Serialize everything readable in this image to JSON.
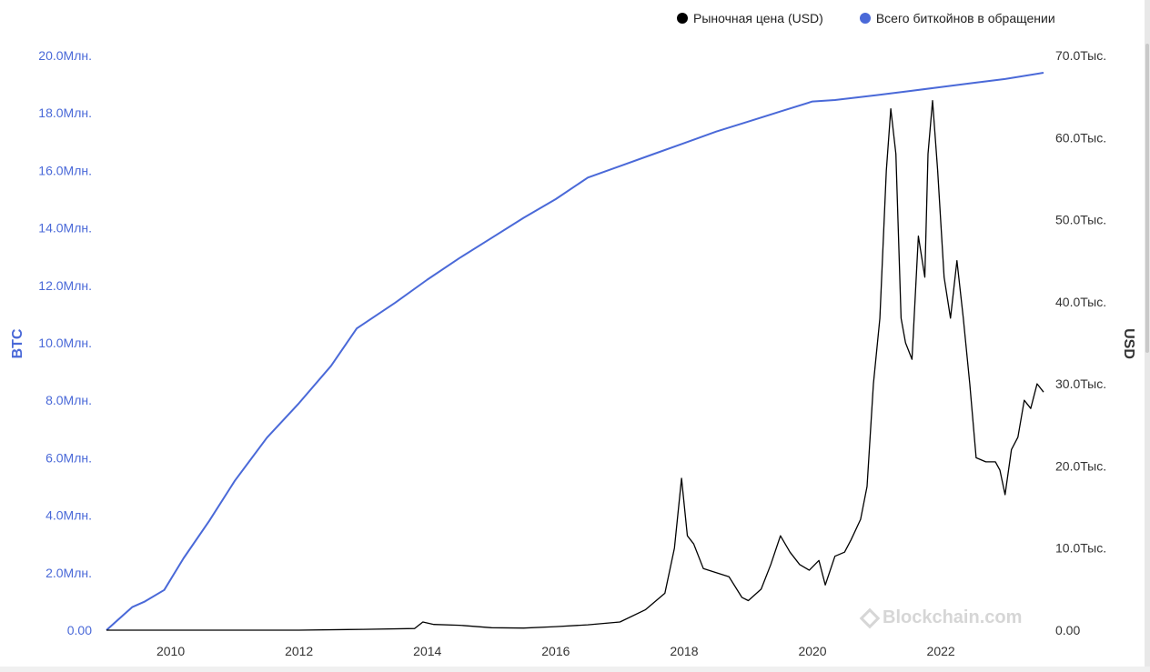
{
  "legend": {
    "price_label": "Рыночная цена (USD)",
    "supply_label": "Всего биткойнов в обращении"
  },
  "watermark": "Blockchain.com",
  "colors": {
    "price": "#000000",
    "supply": "#4a69d8",
    "left_axis_text": "#4a69d8",
    "right_axis_text": "#333333"
  },
  "chart_data": {
    "type": "line",
    "left_axis": {
      "label": "BTC",
      "range": [
        0,
        20000000
      ],
      "ticks": [
        "0.00",
        "2.0Млн.",
        "4.0Млн.",
        "6.0Млн.",
        "8.0Млн.",
        "10.0Млн.",
        "12.0Млн.",
        "14.0Млн.",
        "16.0Млн.",
        "18.0Млн.",
        "20.0Млн."
      ]
    },
    "right_axis": {
      "label": "USD",
      "range": [
        0,
        70000
      ],
      "ticks": [
        "0.00",
        "10.0Тыс.",
        "20.0Тыс.",
        "30.0Тыс.",
        "40.0Тыс.",
        "50.0Тыс.",
        "60.0Тыс.",
        "70.0Тыс."
      ]
    },
    "x_axis": {
      "range": [
        2009.0,
        2023.6
      ],
      "ticks": [
        "2010",
        "2012",
        "2014",
        "2016",
        "2018",
        "2020",
        "2022"
      ]
    },
    "series": [
      {
        "name": "Всего биткойнов в обращении",
        "axis": "left",
        "x": [
          2009.0,
          2009.4,
          2009.6,
          2009.9,
          2010.2,
          2010.6,
          2011.0,
          2011.5,
          2012.0,
          2012.5,
          2012.9,
          2013.5,
          2014.0,
          2014.5,
          2015.0,
          2015.5,
          2016.0,
          2016.5,
          2017.0,
          2017.5,
          2018.0,
          2018.5,
          2019.0,
          2019.5,
          2020.0,
          2020.35,
          2021.0,
          2021.5,
          2022.0,
          2022.5,
          2023.0,
          2023.6
        ],
        "values": [
          0,
          800000,
          1000000,
          1400000,
          2500000,
          3800000,
          5200000,
          6700000,
          7900000,
          9200000,
          10500000,
          11400000,
          12200000,
          12950000,
          13650000,
          14350000,
          15000000,
          15750000,
          16150000,
          16550000,
          16950000,
          17350000,
          17700000,
          18050000,
          18400000,
          18450000,
          18620000,
          18760000,
          18900000,
          19040000,
          19180000,
          19400000
        ]
      },
      {
        "name": "Рыночная цена (USD)",
        "axis": "right",
        "x": [
          2009.0,
          2010.0,
          2011.0,
          2012.0,
          2013.0,
          2013.8,
          2013.93,
          2014.1,
          2014.5,
          2015.0,
          2015.5,
          2016.0,
          2016.5,
          2017.0,
          2017.4,
          2017.7,
          2017.85,
          2017.96,
          2018.05,
          2018.15,
          2018.3,
          2018.5,
          2018.7,
          2018.9,
          2019.0,
          2019.2,
          2019.35,
          2019.5,
          2019.65,
          2019.8,
          2019.95,
          2020.1,
          2020.2,
          2020.35,
          2020.5,
          2020.6,
          2020.75,
          2020.85,
          2020.95,
          2021.05,
          2021.15,
          2021.22,
          2021.3,
          2021.38,
          2021.45,
          2021.55,
          2021.65,
          2021.75,
          2021.8,
          2021.87,
          2021.95,
          2022.05,
          2022.15,
          2022.25,
          2022.35,
          2022.45,
          2022.55,
          2022.7,
          2022.85,
          2022.92,
          2023.0,
          2023.1,
          2023.2,
          2023.3,
          2023.4,
          2023.5,
          2023.6
        ],
        "values": [
          0,
          0,
          0,
          5,
          100,
          200,
          1000,
          700,
          600,
          300,
          250,
          430,
          650,
          1000,
          2500,
          4500,
          10000,
          18500,
          11500,
          10500,
          7500,
          7000,
          6500,
          4000,
          3600,
          5000,
          8000,
          11500,
          9500,
          8000,
          7300,
          8500,
          5500,
          9000,
          9500,
          11000,
          13500,
          17500,
          30000,
          38000,
          56000,
          63500,
          58000,
          38000,
          35000,
          33000,
          48000,
          43000,
          58000,
          64500,
          56000,
          43000,
          38000,
          45000,
          38000,
          30000,
          21000,
          20500,
          20500,
          19500,
          16500,
          22000,
          23500,
          28000,
          27000,
          30000,
          29000
        ]
      }
    ]
  }
}
